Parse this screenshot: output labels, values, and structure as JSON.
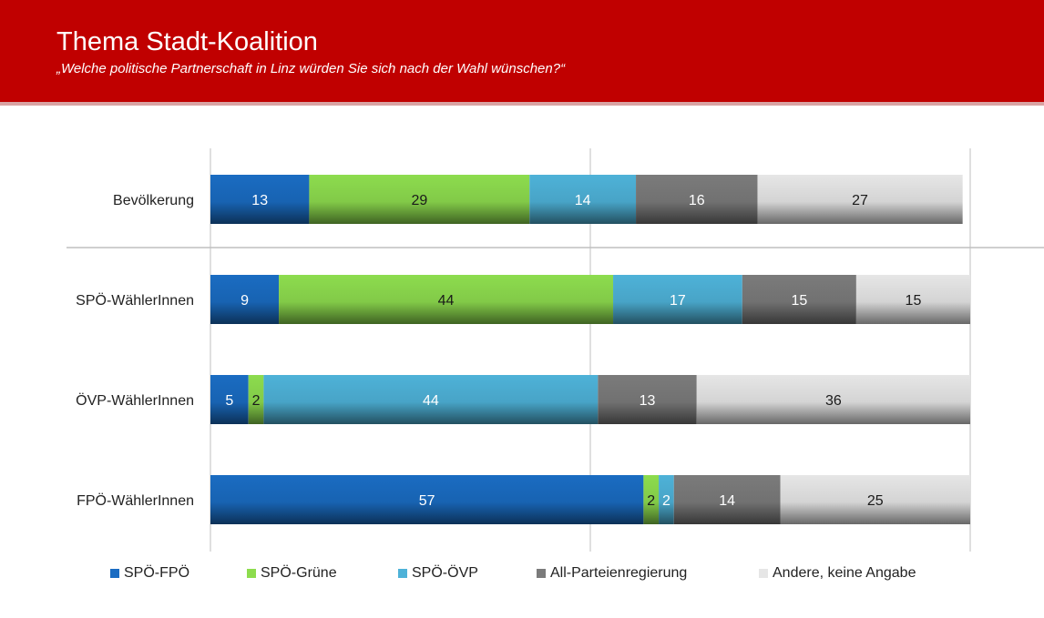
{
  "header": {
    "title": "Thema Stadt-Koalition",
    "subtitle": "„Welche politische Partnerschaft in Linz würden Sie sich nach der Wahl wünschen?“",
    "color": "#c00000",
    "accent_line": "#d9a3a3"
  },
  "chart_data": {
    "type": "bar",
    "orientation": "horizontal",
    "stacked": true,
    "unit": "%",
    "xlim": [
      0,
      100
    ],
    "title": "Thema Stadt-Koalition",
    "categories": [
      "Bevölkerung",
      "SPÖ-WählerInnen",
      "ÖVP-WählerInnen",
      "FPÖ-WählerInnen"
    ],
    "series": [
      {
        "name": "SPÖ-FPÖ",
        "color": "#1a6cc2",
        "values": [
          13,
          9,
          5,
          57
        ]
      },
      {
        "name": "SPÖ-Grüne",
        "color": "#8ddc4e",
        "values": [
          29,
          44,
          2,
          2
        ]
      },
      {
        "name": "SPÖ-ÖVP",
        "color": "#4eb2d8",
        "values": [
          14,
          17,
          44,
          2
        ]
      },
      {
        "name": "All-Parteienregierung",
        "color": "#7b7b7b",
        "values": [
          16,
          15,
          13,
          14
        ]
      },
      {
        "name": "Andere, keine Angabe",
        "color": "#e6e6e6",
        "values": [
          27,
          15,
          36,
          25
        ]
      }
    ],
    "legend_position": "bottom"
  }
}
